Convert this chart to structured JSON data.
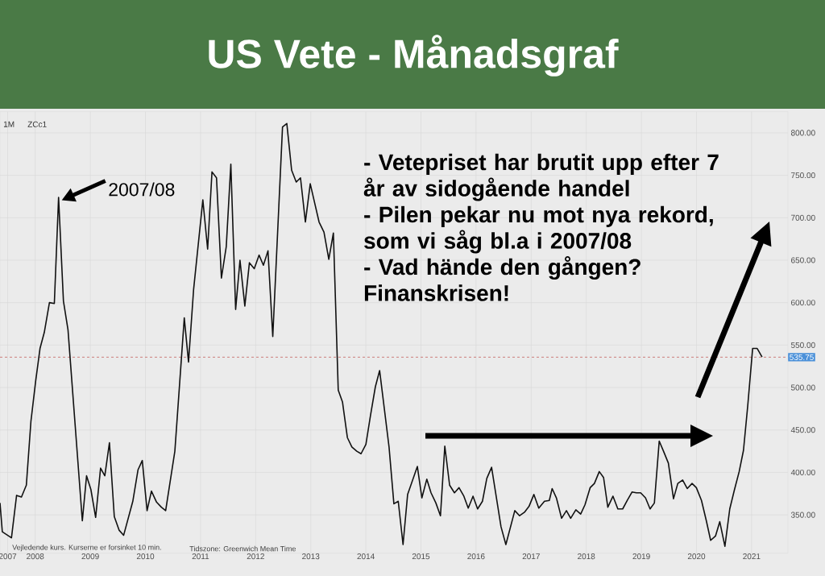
{
  "chart_data": {
    "type": "line",
    "title": "US Vete - Månadsgraf",
    "x": [
      2007.361,
      2007.403,
      2007.569,
      2007.662,
      2007.75,
      2007.839,
      2007.922,
      2008.009,
      2008.087,
      2008.165,
      2008.258,
      2008.347,
      2008.424,
      2008.512,
      2008.595,
      2008.855,
      2008.932,
      2009.01,
      2009.097,
      2009.186,
      2009.263,
      2009.347,
      2009.435,
      2009.522,
      2009.605,
      2009.771,
      2009.865,
      2009.943,
      2010.03,
      2010.109,
      2010.202,
      2010.29,
      2010.367,
      2010.534,
      2010.705,
      2010.782,
      2010.875,
      2011.042,
      2011.129,
      2011.208,
      2011.29,
      2011.379,
      2011.467,
      2011.55,
      2011.637,
      2011.716,
      2011.804,
      2011.887,
      2011.975,
      2012.062,
      2012.141,
      2012.224,
      2012.311,
      2012.488,
      2012.566,
      2012.653,
      2012.737,
      2012.814,
      2012.903,
      2012.991,
      2013.151,
      2013.24,
      2013.328,
      2013.411,
      2013.499,
      2013.576,
      2013.665,
      2013.747,
      2013.836,
      2013.913,
      2014.001,
      2014.084,
      2014.173,
      2014.25,
      2014.421,
      2014.509,
      2014.588,
      2014.675,
      2014.758,
      2014.935,
      2015.017,
      2015.106,
      2015.183,
      2015.271,
      2015.354,
      2015.433,
      2015.52,
      2015.608,
      2015.691,
      2015.779,
      2015.858,
      2015.945,
      2016.028,
      2016.116,
      2016.195,
      2016.282,
      2016.453,
      2016.541,
      2016.703,
      2016.79,
      2016.878,
      2016.961,
      2017.049,
      2017.138,
      2017.241,
      2017.329,
      2017.381,
      2017.458,
      2017.552,
      2017.64,
      2017.717,
      2017.811,
      2017.899,
      2017.977,
      2018.07,
      2018.148,
      2018.236,
      2018.314,
      2018.391,
      2018.485,
      2018.573,
      2018.661,
      2018.744,
      2018.832,
      2018.91,
      2018.987,
      2019.075,
      2019.158,
      2019.236,
      2019.324,
      2019.402,
      2019.49,
      2019.583,
      2019.661,
      2019.749,
      2019.832,
      2019.92,
      2019.998,
      2020.091,
      2020.179,
      2020.257,
      2020.345,
      2020.423,
      2020.516,
      2020.604,
      2020.687,
      2020.775,
      2020.853,
      2020.931,
      2021.019,
      2021.102,
      2021.19
    ],
    "series": [
      {
        "color": "#111111",
        "values": [
          364,
          330,
          323,
          373,
          371,
          385,
          460,
          508,
          546,
          565,
          600,
          599,
          724,
          602,
          568,
          343,
          396,
          380,
          347,
          405,
          396,
          435,
          348,
          332,
          326,
          366,
          403,
          414,
          355,
          378,
          365,
          359,
          355,
          425,
          582,
          530,
          616,
          721,
          663,
          754,
          747,
          629,
          666,
          763,
          592,
          650,
          596,
          647,
          640,
          656,
          644,
          661,
          560,
          807,
          811,
          756,
          742,
          747,
          695,
          740,
          695,
          683,
          651,
          682,
          497,
          483,
          441,
          430,
          425,
          422,
          433,
          467,
          501,
          520,
          430,
          363,
          366,
          315,
          374,
          407,
          370,
          392,
          376,
          364,
          349,
          431,
          385,
          376,
          382,
          372,
          358,
          372,
          357,
          366,
          393,
          406,
          336,
          315,
          355,
          349,
          353,
          360,
          374,
          358,
          366,
          367,
          381,
          370,
          346,
          355,
          346,
          356,
          351,
          362,
          382,
          387,
          401,
          394,
          359,
          372,
          357,
          357,
          367,
          377,
          376,
          376,
          370,
          357,
          364,
          437,
          425,
          411,
          369,
          387,
          391,
          381,
          387,
          382,
          367,
          343,
          320,
          325,
          342,
          313,
          357,
          379,
          401,
          426,
          479,
          546,
          546,
          536
        ]
      }
    ],
    "xlim": [
      2007.361,
      2021.66
    ],
    "ylim": [
      305,
      825
    ],
    "xticks": [
      {
        "value": 2007.5,
        "label": "2007"
      },
      2008,
      2009,
      2010,
      2011,
      2012,
      2013,
      2014,
      2015,
      2016,
      2017,
      2018,
      2019,
      2020,
      2021
    ],
    "yticks": [
      {
        "value": 350,
        "label": "350.00"
      },
      {
        "value": 400,
        "label": "400.00"
      },
      {
        "value": 450,
        "label": "450.00"
      },
      {
        "value": 500,
        "label": "500.00"
      },
      {
        "value": 550,
        "label": "550.00"
      },
      {
        "value": 600,
        "label": "600.00"
      },
      {
        "value": 650,
        "label": "650.00"
      },
      {
        "value": 700,
        "label": "700.00"
      },
      {
        "value": 750,
        "label": "750.00"
      },
      {
        "value": 800,
        "label": "800.00"
      }
    ],
    "ref_lines": [
      {
        "axis": "y",
        "value": 535.75,
        "label": "535.75",
        "color": "#c0504d",
        "line_style": "dashed"
      }
    ],
    "annotations": [
      "1M",
      "ZCc1",
      {
        "text": "2007/08",
        "x": 2008.424,
        "y": 724
      },
      "- Vetepriset har brutit upp efter 7 år av sidogående handel",
      "- Pilen pekar nu mot nya rekord, som vi såg bl.a i 2007/08",
      "- Vad hände den gången?",
      "Finanskrisen!",
      "Vejledende kurs. Kurserne er forsinket 10 min.",
      "Tidszone: Greenwich Mean Time"
    ],
    "grid": true,
    "marker": "none",
    "line_style": "solid"
  }
}
